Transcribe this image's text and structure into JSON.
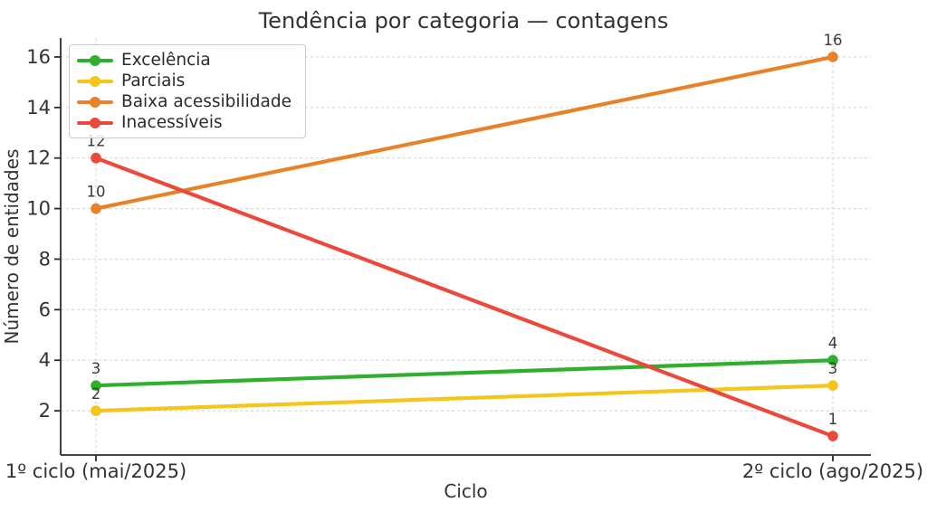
{
  "chart_data": {
    "type": "line",
    "title": "Tendência por categoria — contagens",
    "xlabel": "Ciclo",
    "ylabel": "Número de entidades",
    "categories": [
      "1º ciclo (mai/2025)",
      "2º ciclo (ago/2025)"
    ],
    "series": [
      {
        "name": "Excelência",
        "slug": "excelencia",
        "color": "#2eb02d",
        "values": [
          3,
          4
        ]
      },
      {
        "name": "Parciais",
        "slug": "parciais",
        "color": "#f4c51a",
        "values": [
          2,
          3
        ]
      },
      {
        "name": "Baixa acessibilidade",
        "slug": "baixa-acessibilidade",
        "color": "#e8822a",
        "values": [
          10,
          16
        ]
      },
      {
        "name": "Inacessíveis",
        "slug": "inacessiveis",
        "color": "#e94a3c",
        "values": [
          12,
          1
        ]
      }
    ],
    "yticks": [
      2,
      4,
      6,
      8,
      10,
      12,
      14,
      16
    ],
    "ylim": [
      0.25,
      16.75
    ],
    "grid": true,
    "grid_style": "dashed",
    "legend_position": "upper left",
    "point_labels_shown": true,
    "markers": "circle"
  },
  "colors": {
    "background": "#ffffff",
    "title_text": "#333333",
    "tick_text": "#333333",
    "annotation_text": "#3a3a3a",
    "grid": "#d8d8d8",
    "spine": "#2b2b2b",
    "legend_border": "#cccccc"
  }
}
